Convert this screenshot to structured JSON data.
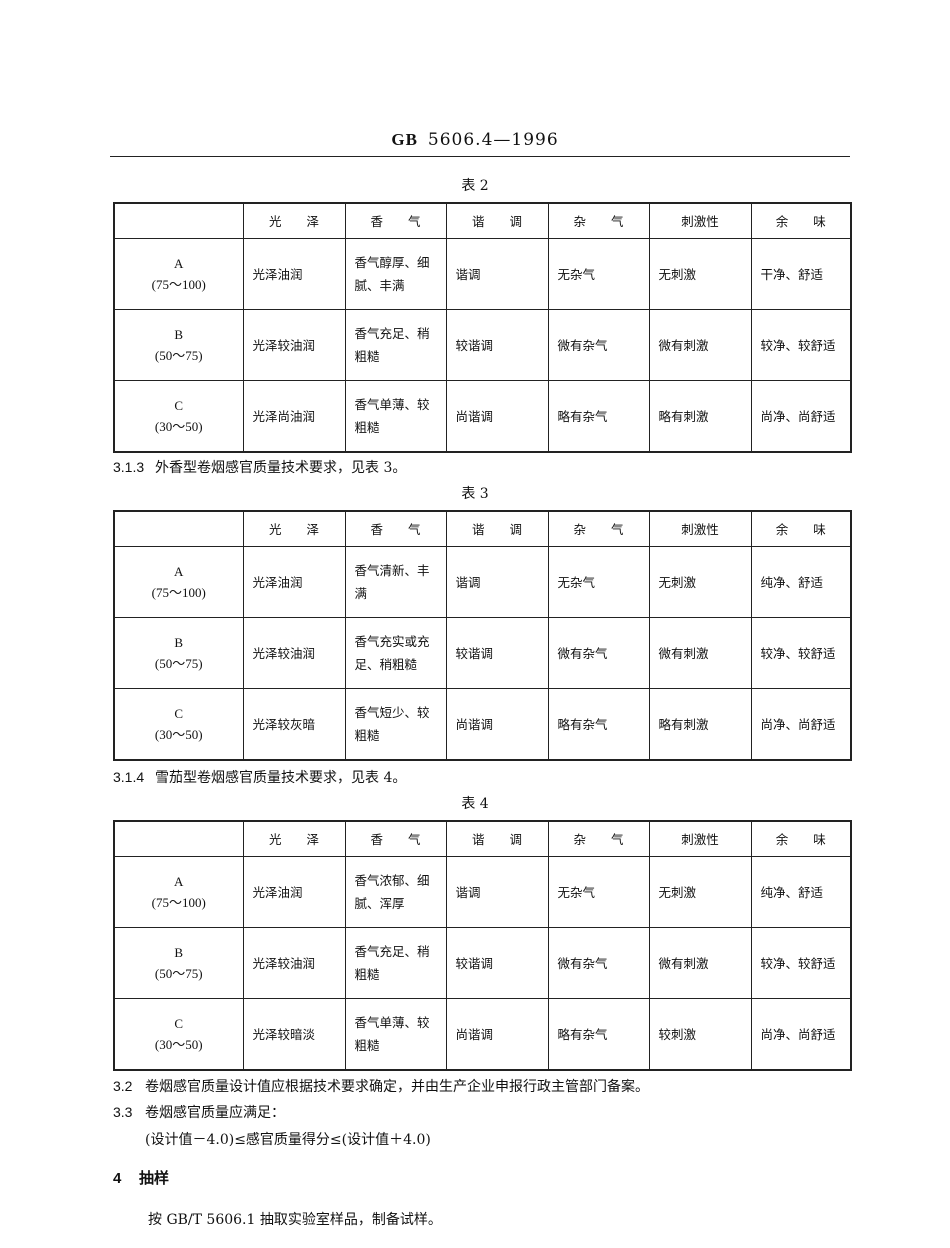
{
  "header": {
    "prefix": "GB",
    "code": "5606.4—1996"
  },
  "columns": [
    "",
    "光　　泽",
    "香　　气",
    "谐　　调",
    "杂　　气",
    "刺激性",
    "余　　味"
  ],
  "tables": [
    {
      "caption": "表 2",
      "rows": [
        {
          "grade": "A",
          "range": "(75～100)",
          "cells": [
            "光泽油润",
            "香气醇厚、细腻、丰满",
            "谐调",
            "无杂气",
            "无刺激",
            "干净、舒适"
          ]
        },
        {
          "grade": "B",
          "range": "(50～75)",
          "cells": [
            "光泽较油润",
            "香气充足、稍粗糙",
            "较谐调",
            "微有杂气",
            "微有刺激",
            "较净、较舒适"
          ]
        },
        {
          "grade": "C",
          "range": "(30～50)",
          "cells": [
            "光泽尚油润",
            "香气单薄、较粗糙",
            "尚谐调",
            "略有杂气",
            "略有刺激",
            "尚净、尚舒适"
          ]
        }
      ]
    },
    {
      "caption": "表 3",
      "rows": [
        {
          "grade": "A",
          "range": "(75～100)",
          "cells": [
            "光泽油润",
            "香气清新、丰满",
            "谐调",
            "无杂气",
            "无刺激",
            "纯净、舒适"
          ]
        },
        {
          "grade": "B",
          "range": "(50～75)",
          "cells": [
            "光泽较油润",
            "香气充实或充足、稍粗糙",
            "较谐调",
            "微有杂气",
            "微有刺激",
            "较净、较舒适"
          ]
        },
        {
          "grade": "C",
          "range": "(30～50)",
          "cells": [
            "光泽较灰暗",
            "香气短少、较粗糙",
            "尚谐调",
            "略有杂气",
            "略有刺激",
            "尚净、尚舒适"
          ]
        }
      ]
    },
    {
      "caption": "表 4",
      "rows": [
        {
          "grade": "A",
          "range": "(75～100)",
          "cells": [
            "光泽油润",
            "香气浓郁、细腻、浑厚",
            "谐调",
            "无杂气",
            "无刺激",
            "纯净、舒适"
          ]
        },
        {
          "grade": "B",
          "range": "(50～75)",
          "cells": [
            "光泽较油润",
            "香气充足、稍粗糙",
            "较谐调",
            "微有杂气",
            "微有刺激",
            "较净、较舒适"
          ]
        },
        {
          "grade": "C",
          "range": "(30～50)",
          "cells": [
            "光泽较暗淡",
            "香气单薄、较粗糙",
            "尚谐调",
            "略有杂气",
            "较刺激",
            "尚净、尚舒适"
          ]
        }
      ]
    }
  ],
  "paragraphs": {
    "p313": {
      "num": "3.1.3",
      "text": "外香型卷烟感官质量技术要求，见表 3。"
    },
    "p314": {
      "num": "3.1.4",
      "text": "雪茄型卷烟感官质量技术要求，见表 4。"
    },
    "p32": {
      "num": "3.2",
      "text": "卷烟感官质量设计值应根据技术要求确定，并由生产企业申报行政主管部门备案。"
    },
    "p33": {
      "num": "3.3",
      "text": "卷烟感官质量应满足："
    },
    "formula": "(设计值－4.0)≤感官质量得分≤(设计值＋4.0)",
    "s4": {
      "num": "4",
      "text": "抽样"
    },
    "s4body": "按 GB/T 5606.1 抽取实验室样品，制备试样。"
  }
}
